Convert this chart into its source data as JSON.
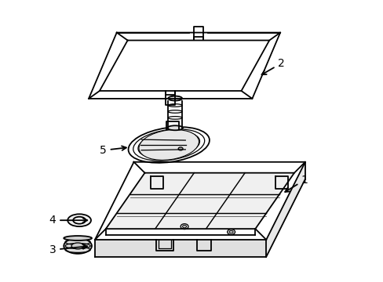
{
  "background_color": "#ffffff",
  "line_color": "#000000",
  "line_width": 1.3,
  "label_fontsize": 10,
  "fig_width": 4.89,
  "fig_height": 3.6,
  "dpi": 100
}
